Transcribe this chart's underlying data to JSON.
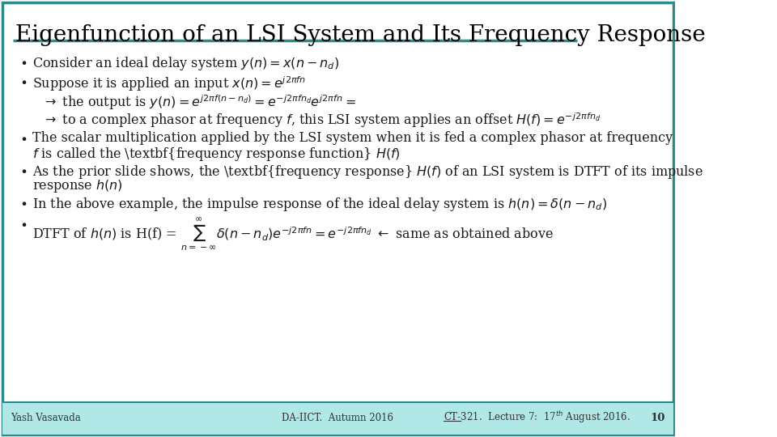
{
  "title": "Eigenfunction of an LSI System and Its Frequency Response",
  "bg_color": "#ffffff",
  "border_color": "#2e8b8b",
  "title_underline_color": "#2e8b8b",
  "footer_bg": "#b0e8e8",
  "footer_left": "Yash Vasavada",
  "footer_center": "DA-IICT.  Autumn 2016",
  "footer_right": "CT-321.  Lecture 7:  17th August 2016.",
  "footer_page": "10",
  "bullet1": "Consider an ideal delay system $y(n) = x(n - n_d)$",
  "bullet2": "Suppose it is applied an input $x(n) = e^{j2\\pi fn}$",
  "arrow1": "$\\rightarrow$ the output is $y(n) = e^{j2\\pi f(n-n_d)} = e^{-j2\\pi fn_d}e^{j2\\pi fn} =$",
  "arrow2": "$\\rightarrow$ to a complex phasor at frequency $f$, this LSI system applies an offset $H(f) = e^{-j2\\pi fn_d}$",
  "bullet3_line1": "The scalar multiplication applied by the LSI system when it is fed a complex phasor at frequency",
  "bullet3_line2": "$f$ is called the \\textbf{frequency response function} $H(f)$",
  "bullet4_line1": "As the prior slide shows, the \\textbf{frequency response} $H(f)$ of an LSI system is DTFT of its impulse",
  "bullet4_line2": "response $h(n)$",
  "bullet5": "In the above example, the impulse response of the ideal delay system is $h(n) = \\delta(n - n_d)$",
  "bullet6": "DTFT of $h(n)$ is H(f) = $\\sum_{n=-\\infty}^{\\infty} \\delta(n-n_d)e^{-j2\\pi fn} = e^{-j2\\pi fn_d}$ $\\leftarrow$ same as obtained above",
  "text_color": "#1a1a1a",
  "title_color": "#000000",
  "footer_text_color": "#333333"
}
